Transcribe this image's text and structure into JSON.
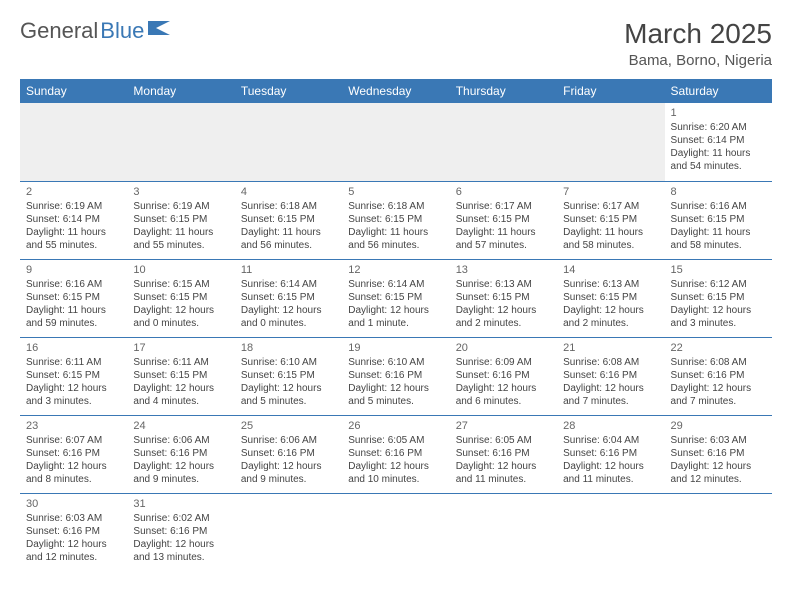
{
  "logo": {
    "text1": "General",
    "text2": "Blue",
    "color1": "#555555",
    "color2": "#3a78b5"
  },
  "header": {
    "month": "March 2025",
    "location": "Bama, Borno, Nigeria"
  },
  "colors": {
    "headerBg": "#3a78b5",
    "headerText": "#ffffff",
    "border": "#3a78b5",
    "emptyRowBg": "#efefef",
    "text": "#444444"
  },
  "dayNames": [
    "Sunday",
    "Monday",
    "Tuesday",
    "Wednesday",
    "Thursday",
    "Friday",
    "Saturday"
  ],
  "weeks": [
    [
      null,
      null,
      null,
      null,
      null,
      null,
      {
        "n": "1",
        "sr": "Sunrise: 6:20 AM",
        "ss": "Sunset: 6:14 PM",
        "dl": "Daylight: 11 hours and 54 minutes."
      }
    ],
    [
      {
        "n": "2",
        "sr": "Sunrise: 6:19 AM",
        "ss": "Sunset: 6:14 PM",
        "dl": "Daylight: 11 hours and 55 minutes."
      },
      {
        "n": "3",
        "sr": "Sunrise: 6:19 AM",
        "ss": "Sunset: 6:15 PM",
        "dl": "Daylight: 11 hours and 55 minutes."
      },
      {
        "n": "4",
        "sr": "Sunrise: 6:18 AM",
        "ss": "Sunset: 6:15 PM",
        "dl": "Daylight: 11 hours and 56 minutes."
      },
      {
        "n": "5",
        "sr": "Sunrise: 6:18 AM",
        "ss": "Sunset: 6:15 PM",
        "dl": "Daylight: 11 hours and 56 minutes."
      },
      {
        "n": "6",
        "sr": "Sunrise: 6:17 AM",
        "ss": "Sunset: 6:15 PM",
        "dl": "Daylight: 11 hours and 57 minutes."
      },
      {
        "n": "7",
        "sr": "Sunrise: 6:17 AM",
        "ss": "Sunset: 6:15 PM",
        "dl": "Daylight: 11 hours and 58 minutes."
      },
      {
        "n": "8",
        "sr": "Sunrise: 6:16 AM",
        "ss": "Sunset: 6:15 PM",
        "dl": "Daylight: 11 hours and 58 minutes."
      }
    ],
    [
      {
        "n": "9",
        "sr": "Sunrise: 6:16 AM",
        "ss": "Sunset: 6:15 PM",
        "dl": "Daylight: 11 hours and 59 minutes."
      },
      {
        "n": "10",
        "sr": "Sunrise: 6:15 AM",
        "ss": "Sunset: 6:15 PM",
        "dl": "Daylight: 12 hours and 0 minutes."
      },
      {
        "n": "11",
        "sr": "Sunrise: 6:14 AM",
        "ss": "Sunset: 6:15 PM",
        "dl": "Daylight: 12 hours and 0 minutes."
      },
      {
        "n": "12",
        "sr": "Sunrise: 6:14 AM",
        "ss": "Sunset: 6:15 PM",
        "dl": "Daylight: 12 hours and 1 minute."
      },
      {
        "n": "13",
        "sr": "Sunrise: 6:13 AM",
        "ss": "Sunset: 6:15 PM",
        "dl": "Daylight: 12 hours and 2 minutes."
      },
      {
        "n": "14",
        "sr": "Sunrise: 6:13 AM",
        "ss": "Sunset: 6:15 PM",
        "dl": "Daylight: 12 hours and 2 minutes."
      },
      {
        "n": "15",
        "sr": "Sunrise: 6:12 AM",
        "ss": "Sunset: 6:15 PM",
        "dl": "Daylight: 12 hours and 3 minutes."
      }
    ],
    [
      {
        "n": "16",
        "sr": "Sunrise: 6:11 AM",
        "ss": "Sunset: 6:15 PM",
        "dl": "Daylight: 12 hours and 3 minutes."
      },
      {
        "n": "17",
        "sr": "Sunrise: 6:11 AM",
        "ss": "Sunset: 6:15 PM",
        "dl": "Daylight: 12 hours and 4 minutes."
      },
      {
        "n": "18",
        "sr": "Sunrise: 6:10 AM",
        "ss": "Sunset: 6:15 PM",
        "dl": "Daylight: 12 hours and 5 minutes."
      },
      {
        "n": "19",
        "sr": "Sunrise: 6:10 AM",
        "ss": "Sunset: 6:16 PM",
        "dl": "Daylight: 12 hours and 5 minutes."
      },
      {
        "n": "20",
        "sr": "Sunrise: 6:09 AM",
        "ss": "Sunset: 6:16 PM",
        "dl": "Daylight: 12 hours and 6 minutes."
      },
      {
        "n": "21",
        "sr": "Sunrise: 6:08 AM",
        "ss": "Sunset: 6:16 PM",
        "dl": "Daylight: 12 hours and 7 minutes."
      },
      {
        "n": "22",
        "sr": "Sunrise: 6:08 AM",
        "ss": "Sunset: 6:16 PM",
        "dl": "Daylight: 12 hours and 7 minutes."
      }
    ],
    [
      {
        "n": "23",
        "sr": "Sunrise: 6:07 AM",
        "ss": "Sunset: 6:16 PM",
        "dl": "Daylight: 12 hours and 8 minutes."
      },
      {
        "n": "24",
        "sr": "Sunrise: 6:06 AM",
        "ss": "Sunset: 6:16 PM",
        "dl": "Daylight: 12 hours and 9 minutes."
      },
      {
        "n": "25",
        "sr": "Sunrise: 6:06 AM",
        "ss": "Sunset: 6:16 PM",
        "dl": "Daylight: 12 hours and 9 minutes."
      },
      {
        "n": "26",
        "sr": "Sunrise: 6:05 AM",
        "ss": "Sunset: 6:16 PM",
        "dl": "Daylight: 12 hours and 10 minutes."
      },
      {
        "n": "27",
        "sr": "Sunrise: 6:05 AM",
        "ss": "Sunset: 6:16 PM",
        "dl": "Daylight: 12 hours and 11 minutes."
      },
      {
        "n": "28",
        "sr": "Sunrise: 6:04 AM",
        "ss": "Sunset: 6:16 PM",
        "dl": "Daylight: 12 hours and 11 minutes."
      },
      {
        "n": "29",
        "sr": "Sunrise: 6:03 AM",
        "ss": "Sunset: 6:16 PM",
        "dl": "Daylight: 12 hours and 12 minutes."
      }
    ],
    [
      {
        "n": "30",
        "sr": "Sunrise: 6:03 AM",
        "ss": "Sunset: 6:16 PM",
        "dl": "Daylight: 12 hours and 12 minutes."
      },
      {
        "n": "31",
        "sr": "Sunrise: 6:02 AM",
        "ss": "Sunset: 6:16 PM",
        "dl": "Daylight: 12 hours and 13 minutes."
      },
      null,
      null,
      null,
      null,
      null
    ]
  ]
}
